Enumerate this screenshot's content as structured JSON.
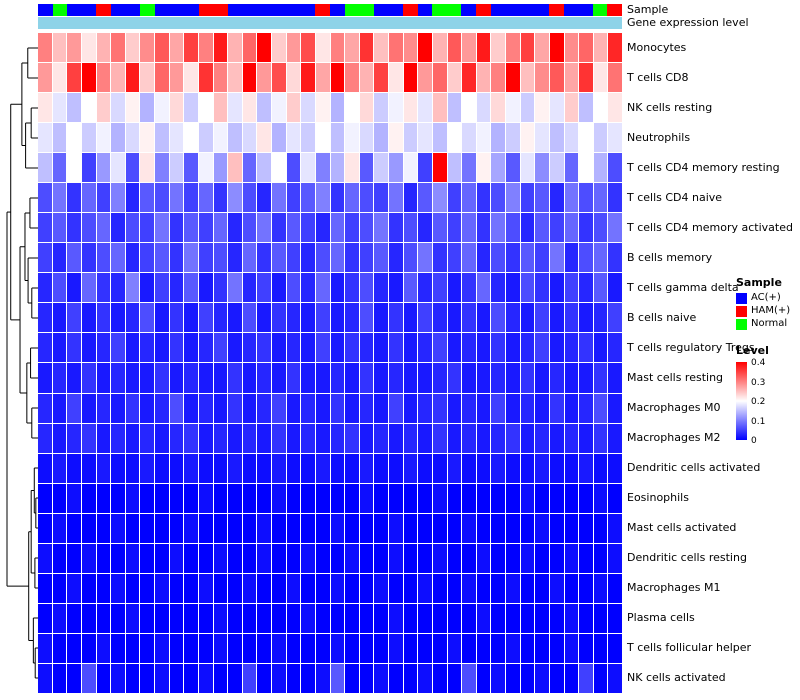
{
  "annotation": {
    "sample_label": "Sample",
    "gene_label": "Gene expression level",
    "gene_bar_color": "#8ED3E8"
  },
  "sample_colors": {
    "AC(+)": "#0000FF",
    "HAM(+)": "#FF0000",
    "Normal": "#00FF00"
  },
  "legend": {
    "sample_title": "Sample",
    "sample_items": [
      {
        "label": "AC(+)",
        "color": "#0000FF"
      },
      {
        "label": "HAM(+)",
        "color": "#FF0000"
      },
      {
        "label": "Normal",
        "color": "#00FF00"
      }
    ],
    "level_title": "Level",
    "level_ticks": [
      "0.4",
      "0.3",
      "0.2",
      "0.1",
      "0"
    ],
    "level_gradient": [
      "#FF0000",
      "#FFFFFF",
      "#0000FF"
    ]
  },
  "chart_data": {
    "type": "heatmap",
    "title": "",
    "value_range": [
      0,
      0.4
    ],
    "colorscale": {
      "low": "#0000FF",
      "mid": "#FFFFFF",
      "high": "#FF0000",
      "mid_value": 0.2
    },
    "rows": [
      "Monocytes",
      "T cells CD8",
      "NK cells resting",
      "Neutrophils",
      "T cells CD4 memory resting",
      "T cells CD4 naive",
      "T cells CD4 memory activated",
      "B cells memory",
      "T cells gamma delta",
      "B cells naive",
      "T cells regulatory Tregs",
      "Mast cells resting",
      "Macrophages M0",
      "Macrophages M2",
      "Dendritic cells activated",
      "Eosinophils",
      "Mast cells activated",
      "Dendritic cells resting",
      "Macrophages M1",
      "Plasma cells",
      "T cells follicular helper",
      "NK cells activated"
    ],
    "columns_n": 40,
    "column_groups": [
      "AC(+)",
      "Normal",
      "AC(+)",
      "AC(+)",
      "HAM(+)",
      "AC(+)",
      "AC(+)",
      "Normal",
      "AC(+)",
      "AC(+)",
      "AC(+)",
      "HAM(+)",
      "HAM(+)",
      "AC(+)",
      "AC(+)",
      "AC(+)",
      "AC(+)",
      "AC(+)",
      "AC(+)",
      "HAM(+)",
      "AC(+)",
      "Normal",
      "Normal",
      "AC(+)",
      "AC(+)",
      "HAM(+)",
      "AC(+)",
      "Normal",
      "Normal",
      "AC(+)",
      "HAM(+)",
      "AC(+)",
      "AC(+)",
      "AC(+)",
      "AC(+)",
      "HAM(+)",
      "AC(+)",
      "AC(+)",
      "Normal",
      "HAM(+)"
    ],
    "matrix": [
      [
        0.3,
        0.25,
        0.28,
        0.22,
        0.26,
        0.31,
        0.24,
        0.29,
        0.33,
        0.27,
        0.35,
        0.3,
        0.38,
        0.26,
        0.32,
        0.4,
        0.24,
        0.28,
        0.34,
        0.22,
        0.3,
        0.27,
        0.36,
        0.25,
        0.31,
        0.29,
        0.42,
        0.26,
        0.33,
        0.28,
        0.38,
        0.24,
        0.3,
        0.35,
        0.27,
        0.41,
        0.29,
        0.32,
        0.26,
        0.37
      ],
      [
        0.28,
        0.22,
        0.35,
        0.45,
        0.3,
        0.26,
        0.38,
        0.24,
        0.32,
        0.28,
        0.22,
        0.36,
        0.3,
        0.25,
        0.42,
        0.28,
        0.34,
        0.23,
        0.38,
        0.27,
        0.44,
        0.3,
        0.26,
        0.35,
        0.22,
        0.4,
        0.28,
        0.32,
        0.24,
        0.37,
        0.26,
        0.3,
        0.43,
        0.25,
        0.29,
        0.33,
        0.27,
        0.36,
        0.22,
        0.31
      ],
      [
        0.22,
        0.18,
        0.15,
        0.2,
        0.24,
        0.17,
        0.21,
        0.14,
        0.19,
        0.23,
        0.16,
        0.2,
        0.25,
        0.18,
        0.22,
        0.15,
        0.19,
        0.24,
        0.17,
        0.21,
        0.14,
        0.2,
        0.23,
        0.16,
        0.19,
        0.22,
        0.18,
        0.25,
        0.15,
        0.2,
        0.17,
        0.23,
        0.19,
        0.16,
        0.21,
        0.18,
        0.24,
        0.15,
        0.2,
        0.22
      ],
      [
        0.18,
        0.15,
        0.2,
        0.16,
        0.19,
        0.14,
        0.17,
        0.21,
        0.15,
        0.18,
        0.2,
        0.16,
        0.19,
        0.15,
        0.17,
        0.22,
        0.14,
        0.18,
        0.16,
        0.2,
        0.15,
        0.19,
        0.17,
        0.14,
        0.21,
        0.16,
        0.18,
        0.15,
        0.2,
        0.17,
        0.19,
        0.14,
        0.16,
        0.21,
        0.18,
        0.15,
        0.17,
        0.2,
        0.16,
        0.18
      ],
      [
        0.15,
        0.08,
        0.2,
        0.05,
        0.12,
        0.18,
        0.06,
        0.22,
        0.1,
        0.16,
        0.07,
        0.19,
        0.12,
        0.25,
        0.08,
        0.15,
        0.2,
        0.06,
        0.18,
        0.1,
        0.14,
        0.22,
        0.07,
        0.16,
        0.12,
        0.19,
        0.05,
        0.42,
        0.15,
        0.09,
        0.21,
        0.13,
        0.07,
        0.18,
        0.11,
        0.16,
        0.08,
        0.2,
        0.14,
        0.06
      ],
      [
        0.06,
        0.09,
        0.04,
        0.08,
        0.05,
        0.1,
        0.03,
        0.07,
        0.06,
        0.09,
        0.05,
        0.08,
        0.04,
        0.11,
        0.06,
        0.03,
        0.09,
        0.05,
        0.07,
        0.1,
        0.04,
        0.08,
        0.06,
        0.05,
        0.09,
        0.03,
        0.07,
        0.11,
        0.05,
        0.08,
        0.04,
        0.06,
        0.1,
        0.05,
        0.07,
        0.03,
        0.09,
        0.06,
        0.08,
        0.04
      ],
      [
        0.05,
        0.07,
        0.04,
        0.06,
        0.08,
        0.03,
        0.06,
        0.05,
        0.09,
        0.04,
        0.07,
        0.05,
        0.08,
        0.03,
        0.06,
        0.09,
        0.04,
        0.07,
        0.05,
        0.03,
        0.08,
        0.05,
        0.06,
        0.09,
        0.04,
        0.06,
        0.03,
        0.07,
        0.05,
        0.08,
        0.04,
        0.09,
        0.06,
        0.03,
        0.07,
        0.05,
        0.08,
        0.04,
        0.06,
        0.09
      ],
      [
        0.05,
        0.03,
        0.07,
        0.04,
        0.06,
        0.08,
        0.03,
        0.05,
        0.07,
        0.04,
        0.09,
        0.05,
        0.06,
        0.03,
        0.08,
        0.04,
        0.07,
        0.05,
        0.03,
        0.06,
        0.08,
        0.04,
        0.05,
        0.07,
        0.03,
        0.06,
        0.09,
        0.04,
        0.05,
        0.08,
        0.03,
        0.06,
        0.04,
        0.07,
        0.05,
        0.09,
        0.03,
        0.06,
        0.08,
        0.04
      ],
      [
        0.03,
        0.06,
        0.02,
        0.08,
        0.04,
        0.03,
        0.1,
        0.02,
        0.05,
        0.03,
        0.07,
        0.02,
        0.04,
        0.09,
        0.03,
        0.05,
        0.02,
        0.06,
        0.03,
        0.08,
        0.02,
        0.04,
        0.06,
        0.03,
        0.02,
        0.07,
        0.03,
        0.05,
        0.02,
        0.04,
        0.08,
        0.03,
        0.02,
        0.06,
        0.04,
        0.02,
        0.05,
        0.03,
        0.07,
        0.02
      ],
      [
        0.03,
        0.02,
        0.05,
        0.02,
        0.04,
        0.02,
        0.03,
        0.06,
        0.02,
        0.04,
        0.02,
        0.05,
        0.03,
        0.02,
        0.06,
        0.02,
        0.04,
        0.03,
        0.02,
        0.05,
        0.02,
        0.03,
        0.06,
        0.02,
        0.04,
        0.02,
        0.05,
        0.03,
        0.02,
        0.04,
        0.02,
        0.06,
        0.03,
        0.02,
        0.05,
        0.02,
        0.04,
        0.02,
        0.03,
        0.05
      ],
      [
        0.03,
        0.02,
        0.04,
        0.02,
        0.03,
        0.05,
        0.02,
        0.03,
        0.02,
        0.04,
        0.02,
        0.03,
        0.05,
        0.02,
        0.03,
        0.04,
        0.02,
        0.03,
        0.02,
        0.05,
        0.02,
        0.04,
        0.03,
        0.02,
        0.04,
        0.02,
        0.03,
        0.05,
        0.02,
        0.03,
        0.02,
        0.04,
        0.02,
        0.03,
        0.05,
        0.02,
        0.03,
        0.04,
        0.02,
        0.03
      ],
      [
        0.02,
        0.03,
        0.02,
        0.04,
        0.02,
        0.03,
        0.02,
        0.02,
        0.04,
        0.02,
        0.03,
        0.02,
        0.02,
        0.04,
        0.02,
        0.03,
        0.02,
        0.04,
        0.02,
        0.02,
        0.03,
        0.02,
        0.04,
        0.02,
        0.03,
        0.02,
        0.02,
        0.03,
        0.04,
        0.02,
        0.02,
        0.03,
        0.02,
        0.04,
        0.02,
        0.03,
        0.02,
        0.02,
        0.04,
        0.02
      ],
      [
        0.03,
        0.02,
        0.05,
        0.02,
        0.03,
        0.02,
        0.04,
        0.02,
        0.03,
        0.06,
        0.02,
        0.03,
        0.02,
        0.04,
        0.02,
        0.03,
        0.05,
        0.02,
        0.03,
        0.02,
        0.04,
        0.02,
        0.03,
        0.02,
        0.05,
        0.02,
        0.03,
        0.04,
        0.02,
        0.03,
        0.02,
        0.05,
        0.02,
        0.03,
        0.02,
        0.04,
        0.02,
        0.03,
        0.06,
        0.02
      ],
      [
        0.03,
        0.02,
        0.03,
        0.04,
        0.02,
        0.03,
        0.02,
        0.03,
        0.02,
        0.03,
        0.04,
        0.02,
        0.03,
        0.02,
        0.03,
        0.02,
        0.04,
        0.02,
        0.03,
        0.02,
        0.03,
        0.04,
        0.02,
        0.03,
        0.02,
        0.03,
        0.02,
        0.04,
        0.02,
        0.03,
        0.02,
        0.03,
        0.04,
        0.02,
        0.03,
        0.02,
        0.03,
        0.02,
        0.04,
        0.02
      ],
      [
        0.01,
        0.02,
        0.01,
        0.01,
        0.02,
        0.01,
        0.01,
        0.02,
        0.01,
        0.01,
        0.02,
        0.01,
        0.01,
        0.02,
        0.01,
        0.01,
        0.02,
        0.01,
        0.01,
        0.02,
        0.01,
        0.01,
        0.02,
        0.01,
        0.01,
        0.02,
        0.01,
        0.01,
        0.02,
        0.01,
        0.01,
        0.02,
        0.01,
        0.01,
        0.02,
        0.01,
        0.01,
        0.02,
        0.01,
        0.01
      ],
      [
        0.0,
        0.0,
        0.01,
        0.0,
        0.0,
        0.0,
        0.01,
        0.0,
        0.0,
        0.0,
        0.0,
        0.01,
        0.0,
        0.0,
        0.0,
        0.0,
        0.01,
        0.0,
        0.0,
        0.0,
        0.0,
        0.0,
        0.01,
        0.0,
        0.0,
        0.0,
        0.0,
        0.01,
        0.0,
        0.0,
        0.0,
        0.0,
        0.0,
        0.01,
        0.0,
        0.0,
        0.0,
        0.0,
        0.01,
        0.0
      ],
      [
        0.0,
        0.01,
        0.0,
        0.0,
        0.0,
        0.01,
        0.0,
        0.0,
        0.0,
        0.0,
        0.01,
        0.0,
        0.0,
        0.0,
        0.0,
        0.01,
        0.0,
        0.0,
        0.0,
        0.0,
        0.01,
        0.0,
        0.0,
        0.0,
        0.01,
        0.0,
        0.0,
        0.0,
        0.0,
        0.01,
        0.0,
        0.0,
        0.0,
        0.0,
        0.01,
        0.0,
        0.0,
        0.0,
        0.0,
        0.01
      ],
      [
        0.01,
        0.0,
        0.0,
        0.01,
        0.0,
        0.0,
        0.01,
        0.0,
        0.0,
        0.01,
        0.0,
        0.0,
        0.01,
        0.0,
        0.0,
        0.01,
        0.0,
        0.0,
        0.01,
        0.0,
        0.0,
        0.01,
        0.0,
        0.0,
        0.01,
        0.0,
        0.0,
        0.01,
        0.0,
        0.0,
        0.01,
        0.0,
        0.0,
        0.01,
        0.0,
        0.0,
        0.01,
        0.0,
        0.0,
        0.01
      ],
      [
        0.0,
        0.0,
        0.01,
        0.0,
        0.0,
        0.01,
        0.0,
        0.0,
        0.01,
        0.0,
        0.0,
        0.01,
        0.0,
        0.0,
        0.01,
        0.0,
        0.0,
        0.01,
        0.0,
        0.0,
        0.01,
        0.0,
        0.0,
        0.01,
        0.0,
        0.0,
        0.01,
        0.0,
        0.0,
        0.01,
        0.0,
        0.0,
        0.01,
        0.0,
        0.0,
        0.01,
        0.0,
        0.0,
        0.01,
        0.0
      ],
      [
        0.0,
        0.01,
        0.0,
        0.0,
        0.0,
        0.0,
        0.01,
        0.0,
        0.0,
        0.0,
        0.0,
        0.0,
        0.01,
        0.0,
        0.0,
        0.0,
        0.0,
        0.0,
        0.01,
        0.0,
        0.0,
        0.0,
        0.0,
        0.0,
        0.01,
        0.0,
        0.0,
        0.0,
        0.0,
        0.0,
        0.01,
        0.0,
        0.0,
        0.0,
        0.0,
        0.0,
        0.01,
        0.0,
        0.0,
        0.0
      ],
      [
        0.01,
        0.0,
        0.0,
        0.0,
        0.01,
        0.0,
        0.0,
        0.0,
        0.01,
        0.0,
        0.0,
        0.0,
        0.01,
        0.0,
        0.0,
        0.0,
        0.01,
        0.0,
        0.0,
        0.0,
        0.01,
        0.0,
        0.0,
        0.0,
        0.01,
        0.0,
        0.0,
        0.0,
        0.01,
        0.0,
        0.0,
        0.0,
        0.01,
        0.0,
        0.0,
        0.0,
        0.01,
        0.0,
        0.0,
        0.0
      ],
      [
        0.01,
        0.0,
        0.0,
        0.06,
        0.0,
        0.01,
        0.0,
        0.0,
        0.01,
        0.0,
        0.0,
        0.01,
        0.0,
        0.0,
        0.05,
        0.0,
        0.01,
        0.0,
        0.0,
        0.01,
        0.07,
        0.0,
        0.0,
        0.01,
        0.0,
        0.0,
        0.01,
        0.0,
        0.0,
        0.06,
        0.0,
        0.01,
        0.0,
        0.0,
        0.01,
        0.0,
        0.0,
        0.05,
        0.0,
        0.01
      ]
    ]
  },
  "dendrogram": {
    "h": 1.0,
    "c": [
      {
        "h": 0.88,
        "c": [
          {
            "h": 0.52,
            "c": [
              {
                "h": 0.33,
                "c": [
                  {
                    "l": 0
                  },
                  {
                    "l": 1
                  }
                ]
              },
              {
                "h": 0.4,
                "c": [
                  {
                    "h": 0.22,
                    "c": [
                      {
                        "l": 2
                      },
                      {
                        "l": 3
                      }
                    ]
                  },
                  {
                    "l": 4
                  }
                ]
              }
            ]
          },
          {
            "h": 0.58,
            "c": [
              {
                "h": 0.42,
                "c": [
                  {
                    "h": 0.26,
                    "c": [
                      {
                        "l": 5
                      },
                      {
                        "l": 6
                      }
                    ]
                  },
                  {
                    "h": 0.32,
                    "c": [
                      {
                        "l": 7
                      },
                      {
                        "h": 0.2,
                        "c": [
                          {
                            "l": 8
                          },
                          {
                            "l": 9
                          }
                        ]
                      }
                    ]
                  }
                ]
              },
              {
                "h": 0.36,
                "c": [
                  {
                    "h": 0.24,
                    "c": [
                      {
                        "l": 10
                      },
                      {
                        "l": 11
                      }
                    ]
                  },
                  {
                    "h": 0.2,
                    "c": [
                      {
                        "l": 12
                      },
                      {
                        "l": 13
                      }
                    ]
                  }
                ]
              }
            ]
          }
        ]
      },
      {
        "h": 0.3,
        "c": [
          {
            "h": 0.22,
            "c": [
              {
                "h": 0.12,
                "c": [
                  {
                    "l": 14
                  },
                  {
                    "h": 0.07,
                    "c": [
                      {
                        "l": 15
                      },
                      {
                        "l": 16
                      }
                    ]
                  }
                ]
              },
              {
                "h": 0.1,
                "c": [
                  {
                    "l": 17
                  },
                  {
                    "l": 18
                  }
                ]
              }
            ]
          },
          {
            "h": 0.15,
            "c": [
              {
                "l": 19
              },
              {
                "h": 0.09,
                "c": [
                  {
                    "l": 20
                  },
                  {
                    "l": 21
                  }
                ]
              }
            ]
          }
        ]
      }
    ]
  }
}
